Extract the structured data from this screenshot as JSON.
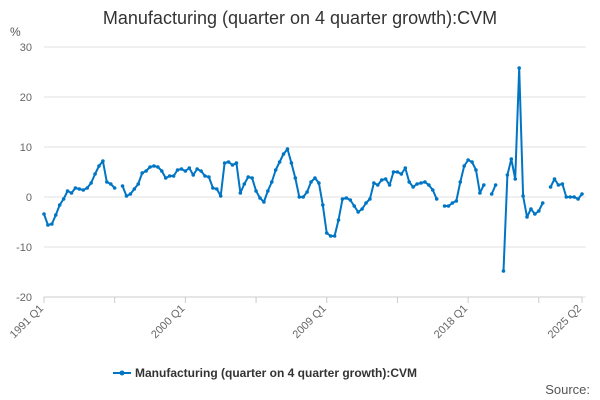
{
  "chart_data": {
    "type": "line",
    "title": "Manufacturing (quarter on 4 quarter growth):CVM",
    "ylabel": "%",
    "xlabel": "",
    "ylim": [
      -20,
      30
    ],
    "yticks": [
      -20,
      -10,
      0,
      10,
      20,
      30
    ],
    "xtick_labels": [
      "1991 Q1",
      "2000 Q1",
      "2009 Q1",
      "2018 Q1",
      "2025 Q2"
    ],
    "grid": true,
    "legend_position": "bottom",
    "color": "#0075c4",
    "series": [
      {
        "name": "Manufacturing (quarter on 4 quarter growth):CVM",
        "values": [
          -3.4,
          -5.6,
          -5.4,
          -3.6,
          -1.6,
          -0.4,
          1.2,
          0.8,
          1.8,
          1.6,
          1.4,
          1.8,
          2.8,
          4.6,
          6.2,
          7.2,
          3,
          2.6,
          1.8,
          null,
          2.2,
          0.2,
          0.6,
          1.6,
          2.6,
          4.8,
          5.2,
          6,
          6.2,
          6,
          5.2,
          3.8,
          4.2,
          4.2,
          5.4,
          5.6,
          5.2,
          5.8,
          4.4,
          5.6,
          5.2,
          4.2,
          4,
          1.8,
          1.6,
          0.2,
          6.8,
          7,
          6.4,
          6.8,
          0.8,
          2.6,
          4,
          3.8,
          1.2,
          -0.2,
          -1,
          1.2,
          3,
          5.4,
          7,
          8.6,
          9.6,
          6.8,
          3.8,
          0,
          0,
          1,
          3,
          3.8,
          2.8,
          -1.6,
          -7.2,
          -7.8,
          -7.8,
          -4.6,
          -0.4,
          -0.2,
          -0.6,
          -1.8,
          -3,
          -2.4,
          -1.2,
          -0.4,
          2.8,
          2.4,
          3.4,
          3.6,
          2.4,
          5,
          5,
          4.6,
          5.8,
          3,
          2,
          2.6,
          2.8,
          3,
          2.4,
          1.4,
          -0.4,
          null,
          -1.8,
          -1.8,
          -1.2,
          -0.8,
          3,
          6.2,
          7.4,
          7,
          5.4,
          0.8,
          2.4,
          null,
          0.6,
          2.4,
          null,
          -14.8,
          4.4,
          7.6,
          3.6,
          25.8,
          0.2,
          -4,
          -2.4,
          -3.4,
          -2.8,
          -1.2,
          null,
          2,
          3.6,
          2.4,
          2.6,
          0,
          0,
          0,
          -0.4,
          0.6
        ]
      }
    ]
  },
  "source_label": "Source:"
}
